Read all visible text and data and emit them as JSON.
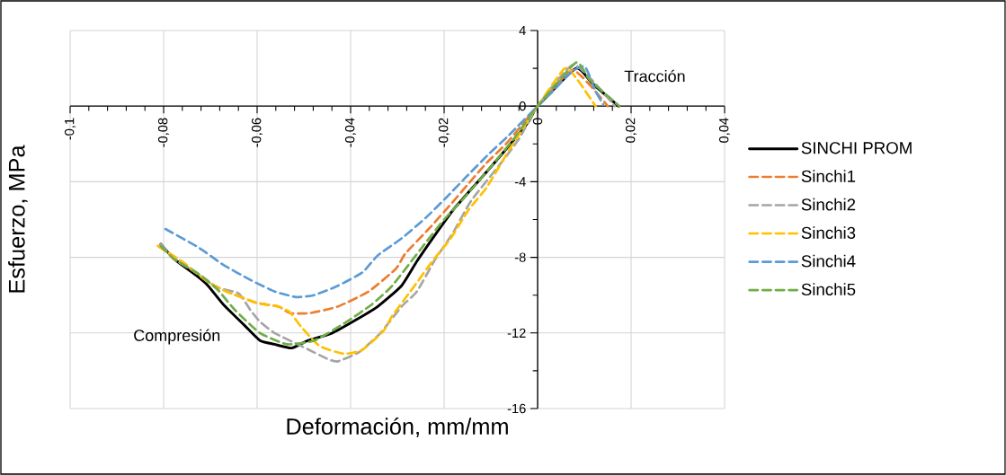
{
  "chart_data": {
    "type": "line",
    "xlabel": "Deformación, mm/mm",
    "ylabel": "Esfuerzo, MPa",
    "xlim": [
      -0.1,
      0.04
    ],
    "ylim": [
      -16,
      4
    ],
    "xticks": [
      {
        "value": -0.1,
        "label": "-0,1"
      },
      {
        "value": -0.08,
        "label": "-0,08"
      },
      {
        "value": -0.06,
        "label": "-0,06"
      },
      {
        "value": -0.04,
        "label": "-0,04"
      },
      {
        "value": -0.02,
        "label": "-0,02"
      },
      {
        "value": 0,
        "label": "0"
      },
      {
        "value": 0.02,
        "label": "0,02"
      },
      {
        "value": 0.04,
        "label": "0,04"
      }
    ],
    "yticks": [
      -16,
      -12,
      -8,
      -4,
      0,
      4
    ],
    "grid": true,
    "legend": "right",
    "annotations": [
      "Tracción",
      "Compresión"
    ],
    "series": [
      {
        "name": "SINCHI PROM",
        "color": "#000000",
        "line_style": "solid",
        "x": [
          -0.0806,
          -0.0777,
          -0.0728,
          -0.0705,
          -0.0672,
          -0.0627,
          -0.0594,
          -0.0563,
          -0.0526,
          -0.0491,
          -0.0439,
          -0.0388,
          -0.0342,
          -0.0291,
          -0.0258,
          -0.0219,
          -0.0181,
          -0.0142,
          -0.0103,
          -0.0058,
          -0.0019,
          0,
          0.0082,
          0.0117,
          0.0173
        ],
        "values": [
          -7.3,
          -8.1,
          -9.0,
          -9.5,
          -10.5,
          -11.6,
          -12.4,
          -12.6,
          -12.8,
          -12.4,
          -12.0,
          -11.3,
          -10.6,
          -9.5,
          -8.2,
          -6.8,
          -5.5,
          -4.4,
          -3.3,
          -2.0,
          -0.8,
          0,
          2.0,
          1.2,
          0
        ]
      },
      {
        "name": "Sinchi1",
        "color": "#ed7d31",
        "line_style": "dashed",
        "x": [
          -0.0812,
          -0.0757,
          -0.0705,
          -0.0666,
          -0.0602,
          -0.0555,
          -0.053,
          -0.0487,
          -0.0427,
          -0.0361,
          -0.0303,
          -0.0283,
          -0.0233,
          -0.0186,
          -0.0148,
          -0.0109,
          -0.0064,
          0,
          0.0076,
          0.015
        ],
        "values": [
          -7.4,
          -8.3,
          -9.3,
          -9.8,
          -10.4,
          -10.6,
          -10.95,
          -10.95,
          -10.6,
          -9.8,
          -8.6,
          -7.8,
          -6.5,
          -5.2,
          -4.1,
          -3.0,
          -1.9,
          0,
          1.9,
          0
        ]
      },
      {
        "name": "Sinchi2",
        "color": "#a5a5a5",
        "line_style": "dashed",
        "x": [
          -0.0806,
          -0.0777,
          -0.0724,
          -0.0685,
          -0.064,
          -0.0614,
          -0.0594,
          -0.0563,
          -0.0505,
          -0.0447,
          -0.0427,
          -0.0381,
          -0.0336,
          -0.0291,
          -0.0258,
          -0.0219,
          -0.0181,
          -0.0142,
          -0.0078,
          -0.0039,
          0,
          0.0078,
          0.0165
        ],
        "values": [
          -7.3,
          -8.1,
          -8.9,
          -9.6,
          -9.9,
          -10.8,
          -11.4,
          -12.0,
          -12.7,
          -13.4,
          -13.5,
          -13.0,
          -12.0,
          -10.6,
          -9.8,
          -8.1,
          -6.7,
          -5.0,
          -3.0,
          -1.7,
          0,
          2.2,
          0
        ]
      },
      {
        "name": "Sinchi3",
        "color": "#ffc000",
        "line_style": "dashed",
        "x": [
          -0.0812,
          -0.0757,
          -0.0705,
          -0.0666,
          -0.0602,
          -0.0555,
          -0.053,
          -0.0505,
          -0.0466,
          -0.0414,
          -0.0375,
          -0.033,
          -0.0311,
          -0.0272,
          -0.0225,
          -0.0186,
          -0.0148,
          -0.0109,
          -0.0058,
          0,
          0.0058,
          0.0085,
          0.0124
        ],
        "values": [
          -7.4,
          -8.3,
          -9.3,
          -9.8,
          -10.4,
          -10.6,
          -10.9,
          -11.7,
          -12.7,
          -13.1,
          -12.9,
          -11.9,
          -11.1,
          -9.8,
          -8.2,
          -7.0,
          -5.5,
          -4.3,
          -2.2,
          0,
          2.0,
          1.4,
          0
        ]
      },
      {
        "name": "Sinchi4",
        "color": "#5b9bd5",
        "line_style": "dashed",
        "x": [
          -0.0796,
          -0.0724,
          -0.0672,
          -0.0614,
          -0.0563,
          -0.0517,
          -0.0478,
          -0.0427,
          -0.0375,
          -0.0342,
          -0.0291,
          -0.0239,
          -0.0194,
          -0.0155,
          -0.0103,
          -0.0064,
          0,
          0.0033,
          0.0072,
          0.0101,
          0.0124,
          0.014
        ],
        "values": [
          -6.5,
          -7.5,
          -8.4,
          -9.2,
          -9.8,
          -10.1,
          -10.0,
          -9.5,
          -8.8,
          -7.9,
          -7.0,
          -5.9,
          -4.8,
          -3.8,
          -2.5,
          -1.6,
          0,
          0.8,
          1.8,
          2.1,
          0.8,
          0.1
        ]
      },
      {
        "name": "Sinchi5",
        "color": "#70ad47",
        "line_style": "dashed",
        "x": [
          -0.0806,
          -0.0777,
          -0.0724,
          -0.0685,
          -0.0647,
          -0.0594,
          -0.0536,
          -0.0478,
          -0.0414,
          -0.0355,
          -0.0311,
          -0.0245,
          -0.02,
          -0.0155,
          -0.0103,
          -0.005,
          0,
          0.0082,
          0.0111,
          0.0175
        ],
        "values": [
          -7.4,
          -8.1,
          -8.9,
          -9.7,
          -10.8,
          -12.0,
          -12.6,
          -12.4,
          -11.5,
          -10.5,
          -9.5,
          -7.4,
          -6.0,
          -4.8,
          -3.3,
          -1.7,
          0,
          2.3,
          1.4,
          0
        ]
      }
    ]
  }
}
